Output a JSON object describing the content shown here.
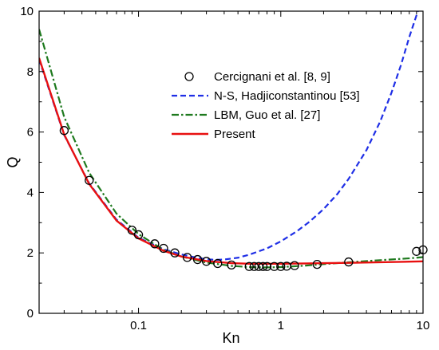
{
  "chart_data": {
    "type": "line",
    "xlabel": "Kn",
    "ylabel": "Q",
    "xscale": "log",
    "xlim": [
      0.02,
      10
    ],
    "ylim": [
      0,
      10
    ],
    "grid": false,
    "legend_position": "top-right",
    "x_ticks": [
      {
        "value": 0.1,
        "label": "0.1"
      },
      {
        "value": 1,
        "label": "1"
      },
      {
        "value": 10,
        "label": "10"
      }
    ],
    "y_ticks": [
      {
        "value": 0,
        "label": "0"
      },
      {
        "value": 2,
        "label": "2"
      },
      {
        "value": 4,
        "label": "4"
      },
      {
        "value": 6,
        "label": "6"
      },
      {
        "value": 8,
        "label": "8"
      },
      {
        "value": 10,
        "label": "10"
      }
    ],
    "series": [
      {
        "name": "Cercignani et al. [8, 9]",
        "style": "markers",
        "marker": "open-circle",
        "color": "#000000",
        "x": [
          0.03,
          0.045,
          0.09,
          0.1,
          0.13,
          0.15,
          0.18,
          0.22,
          0.26,
          0.3,
          0.36,
          0.45,
          0.6,
          0.65,
          0.7,
          0.75,
          0.8,
          0.9,
          1.0,
          1.1,
          1.25,
          1.8,
          3.0,
          9.0,
          10.0
        ],
        "y": [
          6.05,
          4.4,
          2.75,
          2.6,
          2.3,
          2.15,
          2.0,
          1.85,
          1.78,
          1.72,
          1.65,
          1.6,
          1.55,
          1.55,
          1.55,
          1.55,
          1.55,
          1.55,
          1.55,
          1.56,
          1.58,
          1.62,
          1.7,
          2.05,
          2.1
        ]
      },
      {
        "name": "N-S, Hadjiconstantinou [53]",
        "style": "dashed",
        "color": "#1f2fe6",
        "x": [
          0.02,
          0.03,
          0.045,
          0.07,
          0.1,
          0.15,
          0.2,
          0.25,
          0.3,
          0.35,
          0.4,
          0.5,
          0.6,
          0.8,
          1.0,
          1.3,
          1.6,
          2.0,
          2.5,
          3.0,
          4.0,
          5.0,
          6.0,
          7.0,
          8.0,
          9.2
        ],
        "y": [
          8.4,
          5.9,
          4.3,
          3.1,
          2.5,
          2.12,
          1.95,
          1.85,
          1.79,
          1.77,
          1.78,
          1.84,
          1.94,
          2.15,
          2.38,
          2.72,
          3.04,
          3.45,
          3.95,
          4.45,
          5.4,
          6.35,
          7.3,
          8.22,
          9.14,
          10.0
        ]
      },
      {
        "name": "LBM, Guo et al. [27]",
        "style": "dash-dot",
        "color": "#1f7a1f",
        "x": [
          0.02,
          0.03,
          0.045,
          0.07,
          0.1,
          0.15,
          0.2,
          0.3,
          0.45,
          0.6,
          0.8,
          1.0,
          1.5,
          2.0,
          3.0,
          5.0,
          8.0,
          10.0
        ],
        "y": [
          9.4,
          6.5,
          4.65,
          3.3,
          2.62,
          2.1,
          1.88,
          1.68,
          1.57,
          1.53,
          1.52,
          1.53,
          1.58,
          1.63,
          1.69,
          1.76,
          1.82,
          1.86
        ]
      },
      {
        "name": "Present",
        "style": "solid",
        "color": "#e81010",
        "x": [
          0.02,
          0.03,
          0.045,
          0.07,
          0.1,
          0.15,
          0.2,
          0.3,
          0.45,
          0.6,
          0.8,
          1.0,
          1.5,
          2.0,
          3.0,
          5.0,
          8.0,
          10.0
        ],
        "y": [
          8.45,
          5.92,
          4.28,
          3.07,
          2.48,
          2.07,
          1.88,
          1.73,
          1.66,
          1.64,
          1.64,
          1.64,
          1.65,
          1.66,
          1.67,
          1.69,
          1.71,
          1.72
        ]
      }
    ]
  }
}
